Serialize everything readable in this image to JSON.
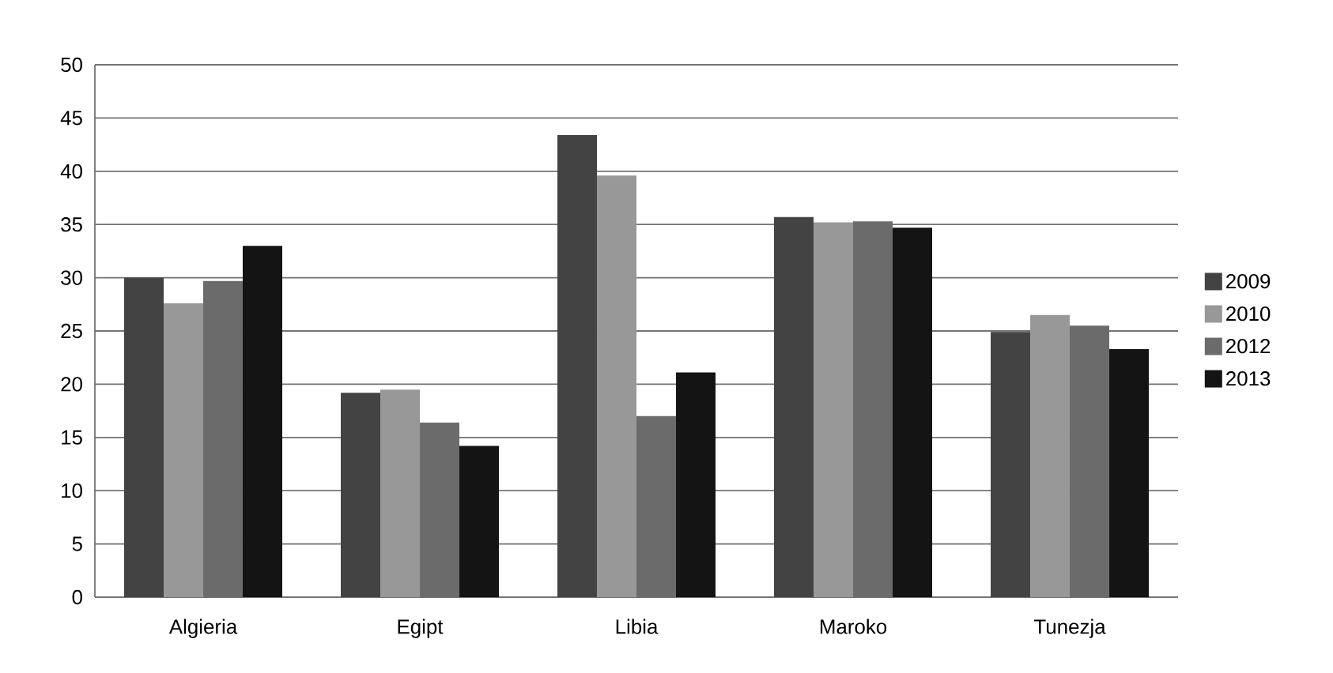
{
  "chart_data": {
    "type": "bar",
    "categories": [
      "Algieria",
      "Egipt",
      "Libia",
      "Maroko",
      "Tunezja"
    ],
    "series": [
      {
        "name": "2009",
        "color": "#434343",
        "values": [
          30.0,
          19.2,
          43.4,
          35.7,
          24.9
        ]
      },
      {
        "name": "2010",
        "color": "#989898",
        "values": [
          27.6,
          19.5,
          39.6,
          35.2,
          26.5
        ]
      },
      {
        "name": "2012",
        "color": "#6b6b6b",
        "values": [
          29.7,
          16.4,
          17.0,
          35.3,
          25.5
        ]
      },
      {
        "name": "2013",
        "color": "#141414",
        "values": [
          33.0,
          14.2,
          21.1,
          34.7,
          23.3
        ]
      }
    ],
    "ylim": [
      0,
      50
    ],
    "yticks": [
      0,
      5,
      10,
      15,
      20,
      25,
      30,
      35,
      40,
      45,
      50
    ],
    "grid": "y",
    "legend": "right"
  }
}
